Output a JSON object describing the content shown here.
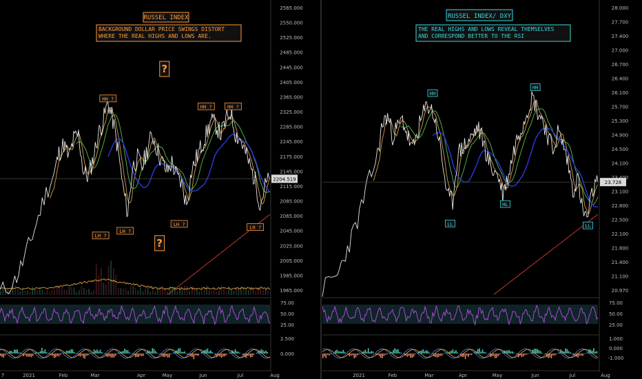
{
  "chart_data": [
    {
      "type": "line",
      "title": "RUSSEL INDEX",
      "subtitle": "BACKGROUND DOLLAR PRICE SWINGS DISTORT\nWHERE THE REAL HIGHS AND LOWS ARE.",
      "y_ticks": [
        "2565.000",
        "2550.000",
        "2525.000",
        "2485.000",
        "2445.000",
        "2405.000",
        "2365.000",
        "2325.000",
        "2285.000",
        "2245.000",
        "2175.000",
        "2145.000",
        "2115.000",
        "2085.000",
        "2065.000",
        "2045.000",
        "2025.000",
        "2005.000",
        "1985.000",
        "1965.000"
      ],
      "last_price": "2204.519",
      "ylim": [
        1955,
        2575
      ],
      "x_ticks": [
        "7",
        "2021",
        "Feb",
        "Mar",
        "Apr",
        "May",
        "Jun",
        "Jul",
        "Aug"
      ],
      "anchors": [
        [
          0,
          1960
        ],
        [
          6,
          1985
        ],
        [
          10,
          2035
        ],
        [
          14,
          2095
        ],
        [
          18,
          2165
        ],
        [
          22,
          2215
        ],
        [
          24,
          2260
        ],
        [
          26,
          2280
        ],
        [
          28,
          2250
        ],
        [
          30,
          2290
        ],
        [
          32,
          2300
        ],
        [
          34,
          2220
        ],
        [
          36,
          2210
        ],
        [
          38,
          2250
        ],
        [
          40,
          2300
        ],
        [
          42,
          2330
        ],
        [
          44,
          2370
        ],
        [
          46,
          2330
        ],
        [
          48,
          2270
        ],
        [
          50,
          2190
        ],
        [
          52,
          2130
        ],
        [
          54,
          2230
        ],
        [
          56,
          2250
        ],
        [
          58,
          2230
        ],
        [
          60,
          2270
        ],
        [
          62,
          2300
        ],
        [
          64,
          2270
        ],
        [
          66,
          2240
        ],
        [
          68,
          2220
        ],
        [
          70,
          2240
        ],
        [
          72,
          2210
        ],
        [
          74,
          2195
        ],
        [
          76,
          2150
        ],
        [
          78,
          2220
        ],
        [
          80,
          2250
        ],
        [
          82,
          2275
        ],
        [
          84,
          2300
        ],
        [
          86,
          2330
        ],
        [
          88,
          2320
        ],
        [
          90,
          2300
        ],
        [
          92,
          2330
        ],
        [
          94,
          2350
        ],
        [
          96,
          2300
        ],
        [
          98,
          2290
        ],
        [
          100,
          2260
        ],
        [
          102,
          2230
        ],
        [
          104,
          2200
        ],
        [
          106,
          2150
        ],
        [
          108,
          2190
        ],
        [
          110,
          2205
        ]
      ],
      "ma_periods": [
        20,
        50,
        100,
        200
      ],
      "ma_colors": [
        "#c8923a",
        "#4caf50",
        "#2a3adf",
        "#c0392b"
      ],
      "annotations": [
        {
          "text": "HH ?",
          "x": 44,
          "y": 2375,
          "color": "#ff9a3a"
        },
        {
          "text": "HH ?",
          "x": 84,
          "y": 2358,
          "color": "#ff9a3a"
        },
        {
          "text": "HH ?",
          "x": 95,
          "y": 2358,
          "color": "#ff9a3a"
        },
        {
          "text": "LH ?",
          "x": 41,
          "y": 2080,
          "color": "#ff9a3a"
        },
        {
          "text": "LH ?",
          "x": 51,
          "y": 2090,
          "color": "#ff9a3a"
        },
        {
          "text": "LH ?",
          "x": 73,
          "y": 2105,
          "color": "#ff9a3a"
        },
        {
          "text": "LH ?",
          "x": 104,
          "y": 2098,
          "color": "#ff9a3a"
        },
        {
          "text": "?",
          "x": 67,
          "y": 2440,
          "color": "#ff9a3a",
          "big": true
        },
        {
          "text": "?",
          "x": 65,
          "y": 2065,
          "color": "#ff9a3a",
          "big": true
        }
      ],
      "rsi_ticks": [
        "75.00",
        "50.00",
        "25.00"
      ],
      "macd_ticks": [
        "2.500",
        "0.000"
      ]
    },
    {
      "type": "line",
      "title": "RUSSEL INDEX/ DXY",
      "subtitle": "THE REAL HIGHS AND LOWS REVEAL THEMSELVES\nAND CORRESPOND BETTER TO THE RSI",
      "y_ticks": [
        "28.000",
        "27.700",
        "27.400",
        "27.000",
        "26.700",
        "26.400",
        "26.100",
        "25.700",
        "25.300",
        "24.900",
        "24.500",
        "24.100",
        "23.400",
        "23.100",
        "22.800",
        "22.500",
        "22.100",
        "21.800",
        "21.400",
        "21.100",
        "20.970"
      ],
      "last_price": "23.728",
      "ylim": [
        20.8,
        28.2
      ],
      "x_ticks": [
        "2021",
        "Feb",
        "Mar",
        "Apr",
        "May",
        "Jun",
        "Jul",
        "Aug"
      ],
      "anchors": [
        [
          0,
          20.95
        ],
        [
          6,
          21.3
        ],
        [
          10,
          22.0
        ],
        [
          14,
          22.7
        ],
        [
          18,
          23.6
        ],
        [
          22,
          24.4
        ],
        [
          24,
          25.2
        ],
        [
          26,
          25.4
        ],
        [
          28,
          24.9
        ],
        [
          30,
          25.1
        ],
        [
          32,
          25.3
        ],
        [
          34,
          24.9
        ],
        [
          36,
          24.5
        ],
        [
          38,
          25.0
        ],
        [
          40,
          25.4
        ],
        [
          42,
          25.7
        ],
        [
          44,
          25.5
        ],
        [
          46,
          25.0
        ],
        [
          48,
          24.2
        ],
        [
          50,
          23.3
        ],
        [
          52,
          23.2
        ],
        [
          54,
          24.4
        ],
        [
          56,
          24.6
        ],
        [
          58,
          24.7
        ],
        [
          60,
          24.9
        ],
        [
          62,
          25.1
        ],
        [
          64,
          24.8
        ],
        [
          66,
          24.3
        ],
        [
          68,
          24.0
        ],
        [
          70,
          23.9
        ],
        [
          72,
          23.4
        ],
        [
          74,
          23.8
        ],
        [
          76,
          24.4
        ],
        [
          78,
          24.9
        ],
        [
          80,
          25.2
        ],
        [
          82,
          25.6
        ],
        [
          84,
          25.9
        ],
        [
          86,
          25.5
        ],
        [
          88,
          25.3
        ],
        [
          90,
          24.9
        ],
        [
          92,
          24.5
        ],
        [
          94,
          25.0
        ],
        [
          96,
          24.7
        ],
        [
          98,
          24.2
        ],
        [
          100,
          23.5
        ],
        [
          102,
          23.8
        ],
        [
          104,
          22.9
        ],
        [
          106,
          22.8
        ],
        [
          108,
          23.5
        ],
        [
          110,
          23.7
        ]
      ],
      "ma_periods": [
        20,
        50,
        100,
        200
      ],
      "ma_colors": [
        "#c8923a",
        "#4caf50",
        "#2a3adf",
        "#c0392b"
      ],
      "annotations": [
        {
          "text": "HH",
          "x": 44,
          "y": 25.95,
          "color": "#3ad8e0"
        },
        {
          "text": "HH",
          "x": 85,
          "y": 26.1,
          "color": "#3ad8e0"
        },
        {
          "text": "LL",
          "x": 51,
          "y": 22.6,
          "color": "#3ad8e0"
        },
        {
          "text": "HL",
          "x": 73,
          "y": 23.1,
          "color": "#3ad8e0"
        },
        {
          "text": "LL",
          "x": 106,
          "y": 22.55,
          "color": "#3ad8e0"
        }
      ],
      "rsi_ticks": [
        "75.00",
        "50.00",
        "25.00"
      ],
      "macd_ticks": [
        "1.000",
        "0.000",
        "-1.000"
      ]
    }
  ],
  "colors": {
    "background": "#000000",
    "price": "#e8e8e8",
    "rsi": "#a34fc9",
    "left_accent": "#ff9a3a",
    "right_accent": "#3ad8e0"
  }
}
